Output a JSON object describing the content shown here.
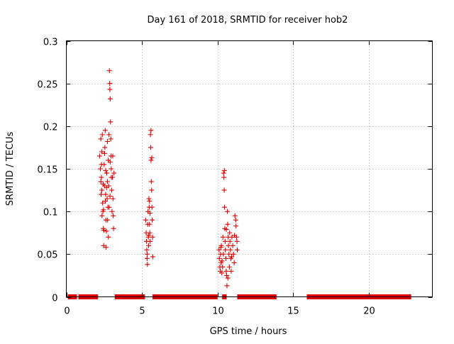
{
  "chart_data": {
    "type": "scatter",
    "title": "Day 161 of 2018, SRMTID for receiver hob2",
    "xlabel": "GPS time / hours",
    "ylabel": "SRMTID / TECUs",
    "xlim": [
      0,
      24.2
    ],
    "ylim": [
      0,
      0.3
    ],
    "x_ticks": [
      0,
      5,
      10,
      15,
      20
    ],
    "x_tick_labels": [
      "0",
      "5",
      "10",
      "15",
      "20"
    ],
    "y_ticks": [
      0,
      0.05,
      0.1,
      0.15,
      0.2,
      0.25,
      0.3
    ],
    "y_tick_labels": [
      "0",
      "0.05",
      "0.1",
      "0.15",
      "0.2",
      "0.25",
      "0.3"
    ],
    "grid": true,
    "marker": "plus",
    "color": "#e00000",
    "zero_value_intervals": [
      [
        0.1,
        0.7
      ],
      [
        0.8,
        2.1
      ],
      [
        3.2,
        5.2
      ],
      [
        5.7,
        10.0
      ],
      [
        10.3,
        10.6
      ],
      [
        11.3,
        13.9
      ],
      [
        15.9,
        22.8
      ]
    ],
    "series": [
      {
        "name": "SRMTID",
        "points": [
          [
            2.2,
            0.165
          ],
          [
            2.25,
            0.15
          ],
          [
            2.28,
            0.135
          ],
          [
            2.3,
            0.12
          ],
          [
            2.32,
            0.14
          ],
          [
            2.35,
            0.17
          ],
          [
            2.38,
            0.19
          ],
          [
            2.4,
            0.11
          ],
          [
            2.42,
            0.1
          ],
          [
            2.45,
            0.08
          ],
          [
            2.47,
            0.06
          ],
          [
            2.5,
            0.155
          ],
          [
            2.52,
            0.13
          ],
          [
            2.55,
            0.175
          ],
          [
            2.57,
            0.195
          ],
          [
            2.6,
            0.12
          ],
          [
            2.62,
            0.09
          ],
          [
            2.65,
            0.077
          ],
          [
            2.67,
            0.145
          ],
          [
            2.7,
            0.115
          ],
          [
            2.72,
            0.135
          ],
          [
            2.75,
            0.105
          ],
          [
            2.77,
            0.16
          ],
          [
            2.8,
            0.13
          ],
          [
            2.82,
            0.19
          ],
          [
            2.85,
            0.265
          ],
          [
            2.87,
            0.25
          ],
          [
            2.88,
            0.243
          ],
          [
            2.9,
            0.232
          ],
          [
            2.92,
            0.205
          ],
          [
            2.94,
            0.185
          ],
          [
            2.95,
            0.165
          ],
          [
            2.97,
            0.15
          ],
          [
            3.0,
            0.125
          ],
          [
            3.02,
            0.1
          ],
          [
            3.05,
            0.14
          ],
          [
            3.07,
            0.165
          ],
          [
            3.1,
            0.095
          ],
          [
            3.12,
            0.08
          ],
          [
            3.15,
            0.145
          ],
          [
            2.28,
            0.185
          ],
          [
            2.33,
            0.155
          ],
          [
            2.36,
            0.095
          ],
          [
            2.44,
            0.132
          ],
          [
            2.48,
            0.078
          ],
          [
            2.53,
            0.168
          ],
          [
            2.58,
            0.112
          ],
          [
            2.63,
            0.058
          ],
          [
            2.66,
            0.128
          ],
          [
            2.73,
            0.09
          ],
          [
            2.78,
            0.07
          ],
          [
            2.83,
            0.105
          ],
          [
            2.89,
            0.118
          ],
          [
            2.98,
            0.14
          ],
          [
            3.08,
            0.115
          ],
          [
            2.35,
            0.125
          ],
          [
            2.6,
            0.148
          ],
          [
            2.72,
            0.182
          ],
          [
            2.9,
            0.158
          ],
          [
            2.46,
            0.102
          ],
          [
            5.25,
            0.09
          ],
          [
            5.28,
            0.075
          ],
          [
            5.3,
            0.065
          ],
          [
            5.32,
            0.055
          ],
          [
            5.34,
            0.045
          ],
          [
            5.36,
            0.038
          ],
          [
            5.38,
            0.085
          ],
          [
            5.4,
            0.1
          ],
          [
            5.42,
            0.07
          ],
          [
            5.44,
            0.06
          ],
          [
            5.46,
            0.115
          ],
          [
            5.48,
            0.105
          ],
          [
            5.5,
            0.085
          ],
          [
            5.52,
            0.075
          ],
          [
            5.54,
            0.065
          ],
          [
            5.56,
            0.19
          ],
          [
            5.58,
            0.175
          ],
          [
            5.6,
            0.16
          ],
          [
            5.62,
            0.135
          ],
          [
            5.64,
            0.125
          ],
          [
            5.66,
            0.105
          ],
          [
            5.68,
            0.09
          ],
          [
            5.7,
            0.07
          ],
          [
            5.72,
            0.047
          ],
          [
            5.35,
            0.05
          ],
          [
            5.45,
            0.072
          ],
          [
            5.53,
            0.098
          ],
          [
            5.6,
            0.195
          ],
          [
            5.65,
            0.163
          ],
          [
            5.5,
            0.112
          ],
          [
            10.1,
            0.055
          ],
          [
            10.12,
            0.045
          ],
          [
            10.15,
            0.035
          ],
          [
            10.18,
            0.03
          ],
          [
            10.2,
            0.05
          ],
          [
            10.23,
            0.04
          ],
          [
            10.25,
            0.06
          ],
          [
            10.28,
            0.028
          ],
          [
            10.3,
            0.042
          ],
          [
            10.33,
            0.035
          ],
          [
            10.35,
            0.07
          ],
          [
            10.38,
            0.05
          ],
          [
            10.4,
            0.145
          ],
          [
            10.42,
            0.14
          ],
          [
            10.44,
            0.125
          ],
          [
            10.46,
            0.105
          ],
          [
            10.48,
            0.08
          ],
          [
            10.5,
            0.065
          ],
          [
            10.52,
            0.055
          ],
          [
            10.55,
            0.045
          ],
          [
            10.57,
            0.03
          ],
          [
            10.6,
            0.025
          ],
          [
            10.62,
            0.013
          ],
          [
            10.65,
            0.1
          ],
          [
            10.67,
            0.085
          ],
          [
            10.7,
            0.07
          ],
          [
            10.72,
            0.06
          ],
          [
            10.75,
            0.05
          ],
          [
            10.78,
            0.035
          ],
          [
            10.8,
            0.075
          ],
          [
            10.82,
            0.065
          ],
          [
            10.85,
            0.055
          ],
          [
            10.88,
            0.045
          ],
          [
            10.9,
            0.03
          ],
          [
            10.95,
            0.07
          ],
          [
            11.0,
            0.06
          ],
          [
            11.05,
            0.05
          ],
          [
            11.1,
            0.04
          ],
          [
            11.15,
            0.095
          ],
          [
            11.2,
            0.09
          ],
          [
            11.22,
            0.083
          ],
          [
            11.25,
            0.07
          ],
          [
            11.28,
            0.065
          ],
          [
            11.3,
            0.055
          ],
          [
            10.22,
            0.058
          ],
          [
            10.58,
            0.079
          ],
          [
            10.68,
            0.022
          ],
          [
            10.93,
            0.047
          ],
          [
            11.12,
            0.072
          ],
          [
            10.45,
            0.148
          ]
        ]
      }
    ]
  }
}
